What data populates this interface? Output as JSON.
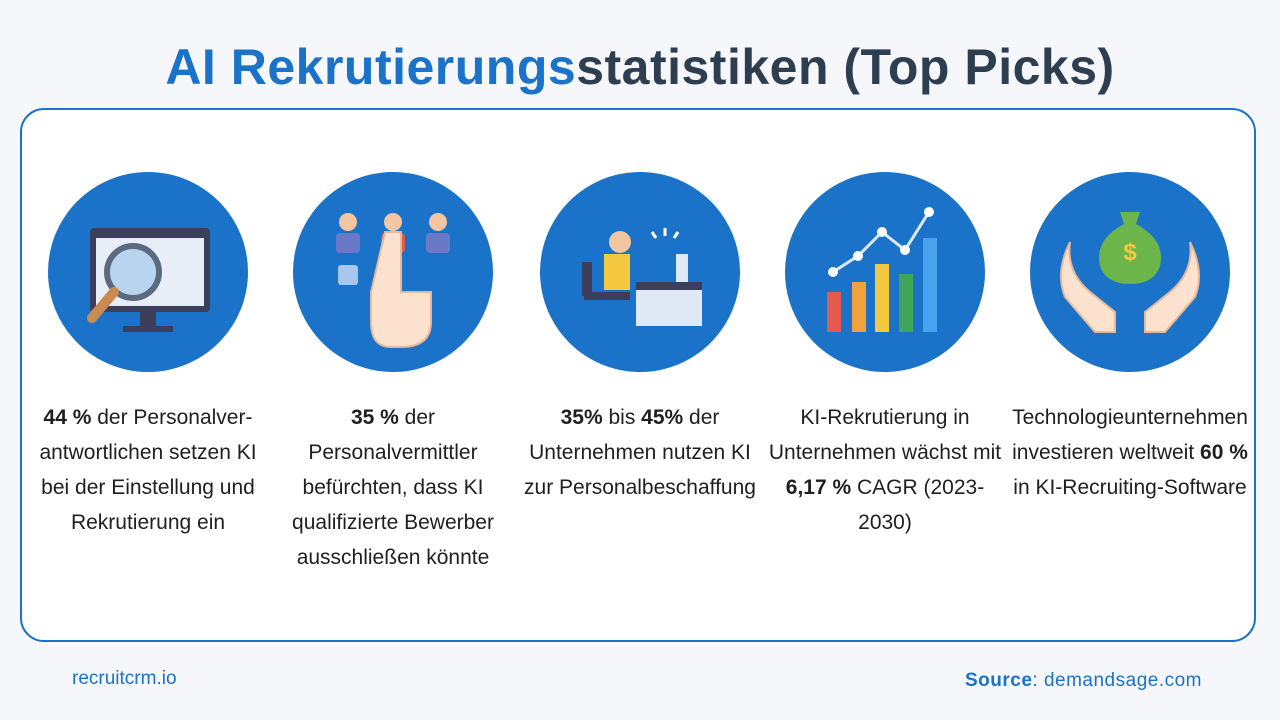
{
  "header": {
    "title_highlight": "AI Rekrutierungs",
    "title_rest": "statistiken (Top Picks)"
  },
  "stats": [
    {
      "runs": [
        {
          "text": "44 %",
          "bold": true
        },
        {
          "text": " der Personalver-antwortlichen setzen KI bei der Einstellung und Rekrutierung ein",
          "bold": false
        }
      ]
    },
    {
      "runs": [
        {
          "text": "35 %",
          "bold": true
        },
        {
          "text": " der Personalvermittler befürchten, dass KI qualifizierte Bewerber ausschließen könnte",
          "bold": false
        }
      ]
    },
    {
      "runs": [
        {
          "text": "35%",
          "bold": true
        },
        {
          "text": " bis ",
          "bold": false
        },
        {
          "text": "45%",
          "bold": true
        },
        {
          "text": " der Unternehmen nutzen KI zur Personalbeschaffung",
          "bold": false
        }
      ]
    },
    {
      "runs": [
        {
          "text": "KI-Rekrutierung in Unternehmen wächst mit ",
          "bold": false
        },
        {
          "text": "6,17 %",
          "bold": true
        },
        {
          "text": " CAGR (2023-2030)",
          "bold": false
        }
      ]
    },
    {
      "runs": [
        {
          "text": "Technologieunternehmen investieren weltweit ",
          "bold": false
        },
        {
          "text": "60 %",
          "bold": true
        },
        {
          "text": " in KI-Recruiting-Software",
          "bold": false
        }
      ]
    }
  ],
  "footer": {
    "brand": "recruitcrm.io",
    "source_label": "Source",
    "source_text": ": demandsage.com"
  }
}
